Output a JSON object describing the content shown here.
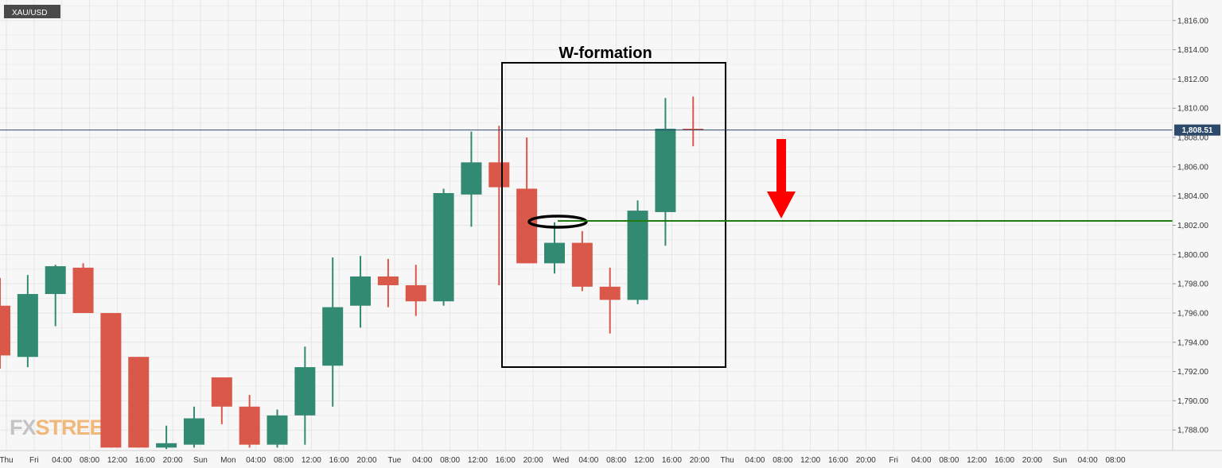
{
  "symbol_label": "XAU/USD",
  "annotation_title": "W-formation",
  "current_price_label": "1,808.51",
  "watermark": {
    "part1": "FX",
    "part2": "STREET"
  },
  "colors": {
    "bull": "#338a73",
    "bear": "#d9584a",
    "grid": "#e6e6e6",
    "background": "#f7f7f7",
    "price_line": "#2e4a6b",
    "support_line": "#1f7a0f",
    "arrow": "#ff0000",
    "label_bg": "#4a4a4a"
  },
  "chart_data": {
    "type": "candlestick",
    "title": "",
    "instrument": "XAU/USD",
    "timeframe": "4H",
    "ylim": [
      1786.6,
      1817.4
    ],
    "y_ticks": [
      {
        "value": 1788,
        "label": "1,788.00"
      },
      {
        "value": 1790,
        "label": "1,790.00"
      },
      {
        "value": 1792,
        "label": "1,792.00"
      },
      {
        "value": 1794,
        "label": "1,794.00"
      },
      {
        "value": 1796,
        "label": "1,796.00"
      },
      {
        "value": 1798,
        "label": "1,798.00"
      },
      {
        "value": 1800,
        "label": "1,800.00"
      },
      {
        "value": 1802,
        "label": "1,802.00"
      },
      {
        "value": 1804,
        "label": "1,804.00"
      },
      {
        "value": 1806,
        "label": "1,806.00"
      },
      {
        "value": 1808,
        "label": "1,808.00"
      },
      {
        "value": 1810,
        "label": "1,810.00"
      },
      {
        "value": 1812,
        "label": "1,812.00"
      },
      {
        "value": 1814,
        "label": "1,814.00"
      },
      {
        "value": 1816,
        "label": "1,816.00"
      }
    ],
    "x_labels": [
      "Thu",
      "Fri",
      "04:00",
      "08:00",
      "12:00",
      "16:00",
      "20:00",
      "Sun",
      "Mon",
      "04:00",
      "08:00",
      "12:00",
      "16:00",
      "20:00",
      "Tue",
      "04:00",
      "08:00",
      "12:00",
      "16:00",
      "20:00",
      "Wed",
      "04:00",
      "08:00",
      "12:00",
      "16:00",
      "20:00",
      "Thu",
      "04:00",
      "08:00",
      "12:00",
      "16:00",
      "20:00",
      "Fri",
      "04:00",
      "08:00",
      "12:00",
      "16:00",
      "20:00",
      "Sun",
      "04:00",
      "08:00"
    ],
    "current_price": 1808.51,
    "support_level": 1802.3,
    "candles": [
      {
        "o": 1796.5,
        "h": 1798.4,
        "l": 1792.2,
        "c": 1793.1
      },
      {
        "o": 1793.0,
        "h": 1798.6,
        "l": 1792.3,
        "c": 1797.3
      },
      {
        "o": 1797.3,
        "h": 1799.3,
        "l": 1795.1,
        "c": 1799.2
      },
      {
        "o": 1799.1,
        "h": 1799.4,
        "l": 1796.0,
        "c": 1796.0
      },
      {
        "o": 1796.0,
        "h": 1796.0,
        "l": 1786.8,
        "c": 1786.8
      },
      {
        "o": 1793.0,
        "h": 1793.0,
        "l": 1786.8,
        "c": 1786.8
      },
      {
        "o": 1786.8,
        "h": 1788.3,
        "l": 1786.7,
        "c": 1787.1
      },
      {
        "o": 1787.0,
        "h": 1789.6,
        "l": 1786.8,
        "c": 1788.8
      },
      {
        "o": 1791.6,
        "h": 1791.6,
        "l": 1788.4,
        "c": 1789.6
      },
      {
        "o": 1789.6,
        "h": 1790.4,
        "l": 1786.8,
        "c": 1787.0
      },
      {
        "o": 1787.0,
        "h": 1789.4,
        "l": 1786.8,
        "c": 1789.0
      },
      {
        "o": 1789.0,
        "h": 1793.7,
        "l": 1787.0,
        "c": 1792.3
      },
      {
        "o": 1792.4,
        "h": 1799.8,
        "l": 1789.6,
        "c": 1796.4
      },
      {
        "o": 1796.5,
        "h": 1799.9,
        "l": 1795.0,
        "c": 1798.5
      },
      {
        "o": 1798.5,
        "h": 1799.7,
        "l": 1796.4,
        "c": 1797.9
      },
      {
        "o": 1797.9,
        "h": 1799.3,
        "l": 1795.8,
        "c": 1796.8
      },
      {
        "o": 1796.8,
        "h": 1804.5,
        "l": 1796.5,
        "c": 1804.2
      },
      {
        "o": 1804.1,
        "h": 1808.4,
        "l": 1801.9,
        "c": 1806.3
      },
      {
        "o": 1806.3,
        "h": 1808.8,
        "l": 1797.9,
        "c": 1804.6
      },
      {
        "o": 1804.5,
        "h": 1808.0,
        "l": 1799.4,
        "c": 1799.4
      },
      {
        "o": 1799.4,
        "h": 1802.2,
        "l": 1798.7,
        "c": 1800.8
      },
      {
        "o": 1800.8,
        "h": 1801.6,
        "l": 1797.5,
        "c": 1797.8
      },
      {
        "o": 1797.8,
        "h": 1799.1,
        "l": 1794.6,
        "c": 1796.9
      },
      {
        "o": 1796.9,
        "h": 1803.7,
        "l": 1796.6,
        "c": 1803.0
      },
      {
        "o": 1802.9,
        "h": 1810.7,
        "l": 1800.6,
        "c": 1808.6
      },
      {
        "o": 1808.6,
        "h": 1810.8,
        "l": 1807.4,
        "c": 1808.5
      }
    ]
  }
}
